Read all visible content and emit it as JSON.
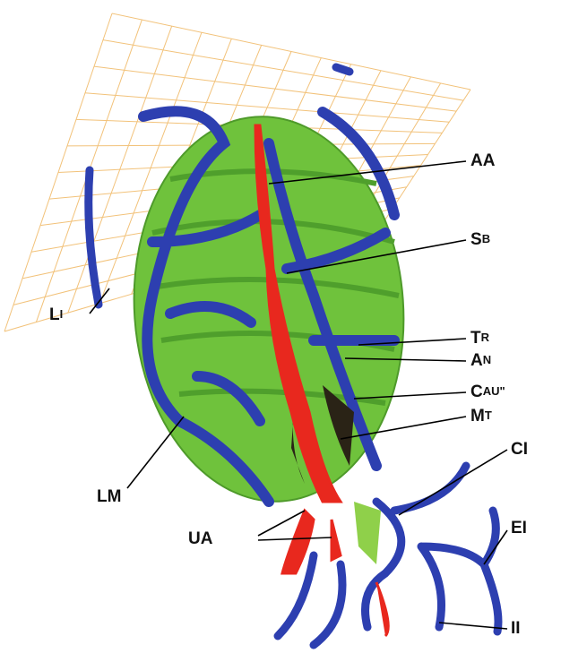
{
  "labels": [
    {
      "big": "AA",
      "small": ""
    },
    {
      "big": "S",
      "small": "B"
    },
    {
      "big": "L",
      "small": "I"
    },
    {
      "big": "T",
      "small": "R"
    },
    {
      "big": "A",
      "small": "N"
    },
    {
      "big": "C",
      "small": "AU\""
    },
    {
      "big": "M",
      "small": "T"
    },
    {
      "big": "CI",
      "small": ""
    },
    {
      "big": "EI",
      "small": ""
    },
    {
      "big": "LM",
      "small": ""
    },
    {
      "big": "UA",
      "small": ""
    },
    {
      "big": "II",
      "small": ""
    }
  ]
}
